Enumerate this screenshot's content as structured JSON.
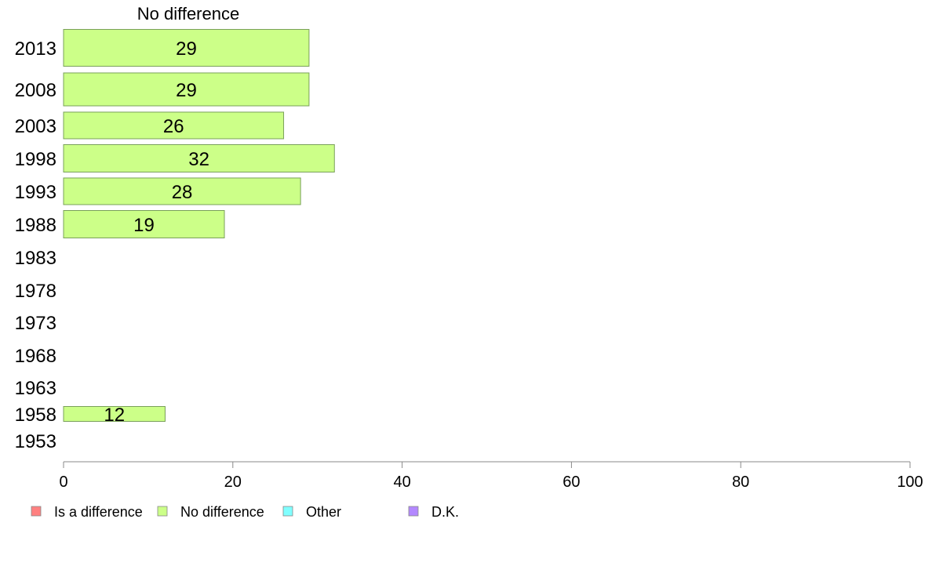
{
  "chart_data": {
    "type": "bar",
    "orientation": "horizontal",
    "title": "No difference",
    "categories": [
      "2013",
      "2008",
      "2003",
      "1998",
      "1993",
      "1988",
      "1983",
      "1978",
      "1973",
      "1968",
      "1963",
      "1958",
      "1953"
    ],
    "series": [
      {
        "name": "No difference",
        "values": [
          29,
          29,
          26,
          32,
          28,
          19,
          null,
          null,
          null,
          null,
          null,
          12,
          null
        ]
      }
    ],
    "xlim": [
      0,
      100
    ],
    "xticks": [
      0,
      20,
      40,
      60,
      80,
      100
    ],
    "grid": false,
    "legend": {
      "placement": "bottom-left",
      "entries": [
        {
          "label": "Is a difference",
          "color": "#ff8080"
        },
        {
          "label": "No difference",
          "color": "#ccff88"
        },
        {
          "label": "Other",
          "color": "#80ffff"
        },
        {
          "label": "D.K.",
          "color": "#b388ff"
        }
      ]
    },
    "colors": {
      "bar_fill": "#ccff88",
      "bar_stroke": "#7aa05a",
      "axis": "#888888"
    }
  }
}
